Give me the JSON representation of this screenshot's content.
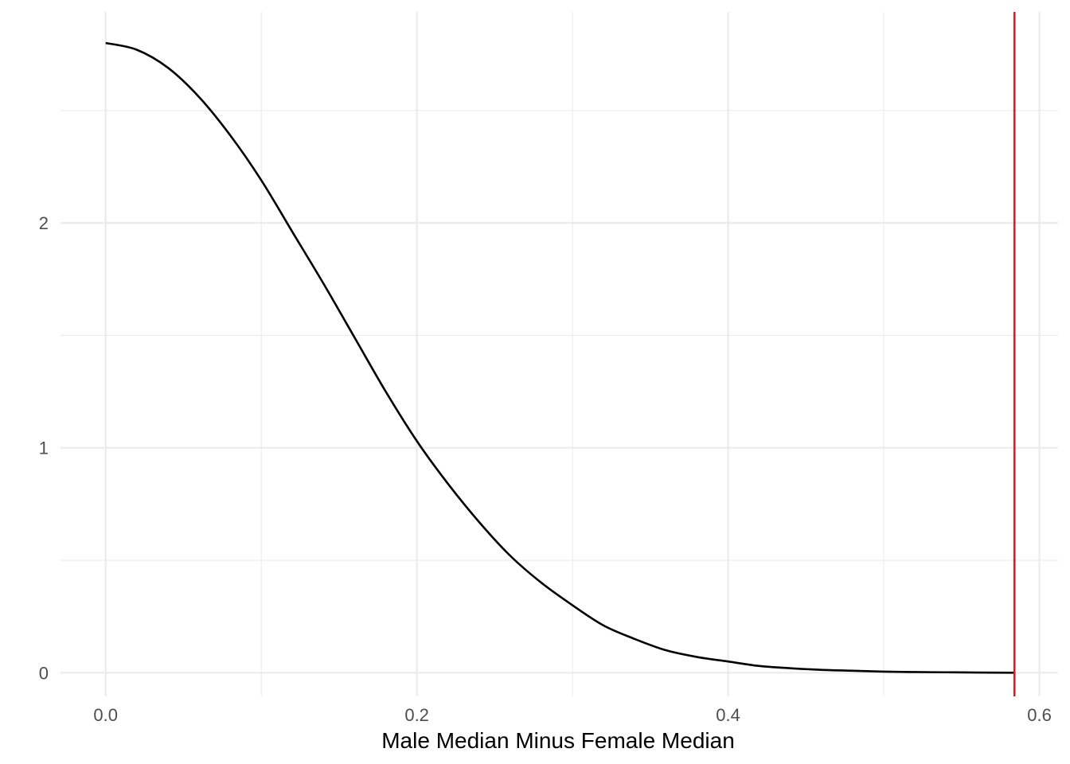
{
  "chart_data": {
    "type": "line",
    "title": "",
    "xlabel": "Male Median Minus Female Median",
    "ylabel": "",
    "xlim": [
      -0.029,
      0.612
    ],
    "ylim": [
      -0.105,
      2.938
    ],
    "x_ticks": [
      {
        "value": 0.0,
        "label": "0.0"
      },
      {
        "value": 0.2,
        "label": "0.2"
      },
      {
        "value": 0.4,
        "label": "0.4"
      },
      {
        "value": 0.6,
        "label": "0.6"
      }
    ],
    "y_ticks": [
      {
        "value": 0,
        "label": "0"
      },
      {
        "value": 1,
        "label": "1"
      },
      {
        "value": 2,
        "label": "2"
      }
    ],
    "x_minor_grid": [
      0.1,
      0.3,
      0.5
    ],
    "y_minor_grid": [
      0.5,
      1.5,
      2.5
    ],
    "grid": true,
    "legend": "none",
    "series": [
      {
        "color": "#000000",
        "x": [
          0.0,
          0.02,
          0.04,
          0.06,
          0.08,
          0.1,
          0.12,
          0.14,
          0.16,
          0.18,
          0.2,
          0.22,
          0.24,
          0.26,
          0.28,
          0.3,
          0.32,
          0.34,
          0.36,
          0.38,
          0.4,
          0.42,
          0.44,
          0.46,
          0.48,
          0.5,
          0.52,
          0.54,
          0.56,
          0.584
        ],
        "values": [
          2.8,
          2.77,
          2.69,
          2.56,
          2.39,
          2.19,
          1.96,
          1.73,
          1.49,
          1.25,
          1.03,
          0.84,
          0.67,
          0.52,
          0.4,
          0.3,
          0.21,
          0.15,
          0.1,
          0.07,
          0.05,
          0.03,
          0.02,
          0.013,
          0.009,
          0.005,
          0.003,
          0.002,
          0.001,
          0.0
        ]
      }
    ],
    "reference_lines": [
      {
        "axis": "x",
        "value": 0.584,
        "color": "#e41a1c"
      }
    ]
  }
}
